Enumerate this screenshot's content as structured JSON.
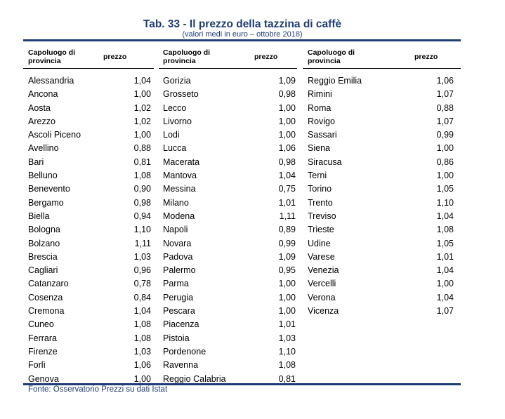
{
  "title": "Tab. 33 - Il prezzo della tazzina di caffè",
  "subtitle": "(valori medi in euro – ottobre 2018)",
  "header": {
    "capoluogo": "Capoluogo di provincia",
    "prezzo": "prezzo"
  },
  "columns": [
    [
      {
        "name": "Alessandria",
        "price": "1,04"
      },
      {
        "name": "Ancona",
        "price": "1,00"
      },
      {
        "name": "Aosta",
        "price": "1,02"
      },
      {
        "name": "Arezzo",
        "price": "1,02"
      },
      {
        "name": "Ascoli Piceno",
        "price": "1,00"
      },
      {
        "name": "Avellino",
        "price": "0,88"
      },
      {
        "name": "Bari",
        "price": "0,81"
      },
      {
        "name": "Belluno",
        "price": "1,08"
      },
      {
        "name": "Benevento",
        "price": "0,90"
      },
      {
        "name": "Bergamo",
        "price": "0,98"
      },
      {
        "name": "Biella",
        "price": "0,94"
      },
      {
        "name": "Bologna",
        "price": "1,10"
      },
      {
        "name": "Bolzano",
        "price": "1,11"
      },
      {
        "name": "Brescia",
        "price": "1,03"
      },
      {
        "name": "Cagliari",
        "price": "0,96"
      },
      {
        "name": "Catanzaro",
        "price": "0,78"
      },
      {
        "name": "Cosenza",
        "price": "0,84"
      },
      {
        "name": "Cremona",
        "price": "1,04"
      },
      {
        "name": "Cuneo",
        "price": "1,08"
      },
      {
        "name": "Ferrara",
        "price": "1,08"
      },
      {
        "name": "Firenze",
        "price": "1,03"
      },
      {
        "name": "Forlì",
        "price": "1,06"
      },
      {
        "name": "Genova",
        "price": "1,00"
      }
    ],
    [
      {
        "name": "Gorizia",
        "price": "1,09"
      },
      {
        "name": "Grosseto",
        "price": "0,98"
      },
      {
        "name": "Lecco",
        "price": "1,00"
      },
      {
        "name": "Livorno",
        "price": "1,00"
      },
      {
        "name": "Lodi",
        "price": "1,00"
      },
      {
        "name": "Lucca",
        "price": "1,06"
      },
      {
        "name": "Macerata",
        "price": "0,98"
      },
      {
        "name": "Mantova",
        "price": "1,04"
      },
      {
        "name": "Messina",
        "price": "0,75"
      },
      {
        "name": "Milano",
        "price": "1,01"
      },
      {
        "name": "Modena",
        "price": "1,11"
      },
      {
        "name": "Napoli",
        "price": "0,89"
      },
      {
        "name": "Novara",
        "price": "0,99"
      },
      {
        "name": "Padova",
        "price": "1,09"
      },
      {
        "name": "Palermo",
        "price": "0,95"
      },
      {
        "name": "Parma",
        "price": "1,00"
      },
      {
        "name": "Perugia",
        "price": "1,00"
      },
      {
        "name": "Pescara",
        "price": "1,00"
      },
      {
        "name": "Piacenza",
        "price": "1,01"
      },
      {
        "name": "Pistoia",
        "price": "1,03"
      },
      {
        "name": "Pordenone",
        "price": "1,10"
      },
      {
        "name": "Ravenna",
        "price": "1,08"
      },
      {
        "name": "Reggio Calabria",
        "price": "0,81"
      }
    ],
    [
      {
        "name": "Reggio Emilia",
        "price": "1,06"
      },
      {
        "name": "Rimini",
        "price": "1,07"
      },
      {
        "name": "Roma",
        "price": "0,88"
      },
      {
        "name": "Rovigo",
        "price": "1,07"
      },
      {
        "name": "Sassari",
        "price": "0,99"
      },
      {
        "name": "Siena",
        "price": "1,00"
      },
      {
        "name": "Siracusa",
        "price": "0,86"
      },
      {
        "name": "Terni",
        "price": "1,00"
      },
      {
        "name": "Torino",
        "price": "1,05"
      },
      {
        "name": "Trento",
        "price": "1,10"
      },
      {
        "name": "Treviso",
        "price": "1,04"
      },
      {
        "name": "Trieste",
        "price": "1,08"
      },
      {
        "name": "Udine",
        "price": "1,05"
      },
      {
        "name": "Varese",
        "price": "1,01"
      },
      {
        "name": "Venezia",
        "price": "1,04"
      },
      {
        "name": "Vercelli",
        "price": "1,00"
      },
      {
        "name": "Verona",
        "price": "1,04"
      },
      {
        "name": "Vicenza",
        "price": "1,07"
      }
    ]
  ],
  "source": "Fonte: Osservatorio Prezzi su dati Istat",
  "colors": {
    "accent": "#1f3d74"
  }
}
